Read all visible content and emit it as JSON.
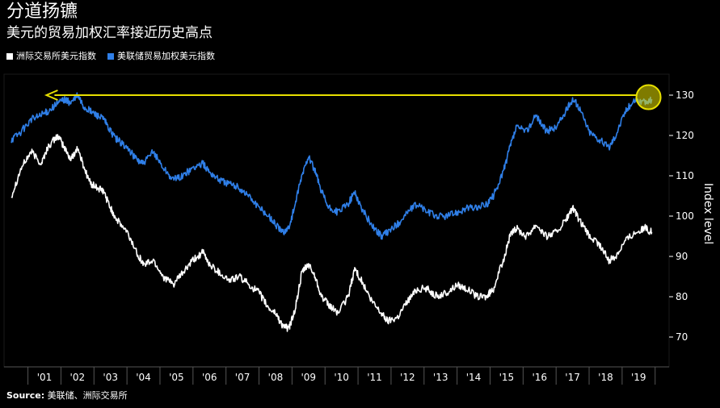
{
  "header": {
    "title": "分道扬镳",
    "subtitle": "美元的贸易加权汇率接近历史高点"
  },
  "legend": [
    {
      "label": "洲际交易所美元指数",
      "color": "#ffffff"
    },
    {
      "label": "美联储贸易加权美元指数",
      "color": "#2f7fe8"
    }
  ],
  "footer": {
    "source_label": "Source:",
    "source_text": "美联储、洲际交易所"
  },
  "colors": {
    "background": "#000000",
    "dxy": "#ffffff",
    "fed": "#2f7fe8",
    "arrow": "#e8e000",
    "grid": "#333333"
  },
  "chart_data": {
    "type": "line",
    "ylabel": "Index level",
    "ylim": [
      65,
      135
    ],
    "yticks": [
      70,
      80,
      90,
      100,
      110,
      120,
      130
    ],
    "xlim": [
      2000.0,
      2019.6
    ],
    "xtick_labels": [
      "'01",
      "'02",
      "'03",
      "'04",
      "'05",
      "'06",
      "'07",
      "'08",
      "'09",
      "'10",
      "'11",
      "'12",
      "'13",
      "'14",
      "'15",
      "'16",
      "'17",
      "'18",
      "'19"
    ],
    "xtick_positions": [
      2001,
      2002,
      2003,
      2004,
      2005,
      2006,
      2007,
      2008,
      2009,
      2010,
      2011,
      2012,
      2013,
      2014,
      2015,
      2016,
      2017,
      2018,
      2019
    ],
    "series": [
      {
        "name": "洲际交易所美元指数",
        "color": "#ffffff",
        "x": [
          2000.0,
          2000.3,
          2000.6,
          2000.9,
          2001.1,
          2001.4,
          2001.6,
          2001.8,
          2002.0,
          2002.2,
          2002.4,
          2002.6,
          2002.8,
          2003.0,
          2003.2,
          2003.5,
          2003.8,
          2004.0,
          2004.3,
          2004.6,
          2004.9,
          2005.2,
          2005.5,
          2005.8,
          2006.0,
          2006.3,
          2006.6,
          2006.9,
          2007.2,
          2007.5,
          2007.8,
          2008.0,
          2008.2,
          2008.4,
          2008.6,
          2008.8,
          2009.0,
          2009.2,
          2009.4,
          2009.6,
          2009.9,
          2010.2,
          2010.4,
          2010.6,
          2010.9,
          2011.2,
          2011.4,
          2011.7,
          2012.0,
          2012.3,
          2012.6,
          2012.9,
          2013.2,
          2013.5,
          2013.8,
          2014.1,
          2014.4,
          2014.6,
          2014.9,
          2015.1,
          2015.3,
          2015.6,
          2015.9,
          2016.2,
          2016.5,
          2016.8,
          2017.0,
          2017.2,
          2017.5,
          2017.8,
          2018.1,
          2018.3,
          2018.6,
          2018.9,
          2019.2,
          2019.4
        ],
        "values": [
          105,
          112,
          116,
          113,
          117,
          120,
          117,
          114,
          117,
          112,
          108,
          107,
          106,
          102,
          99,
          96,
          91,
          88,
          89,
          85,
          83,
          86,
          89,
          91,
          88,
          86,
          84,
          85,
          83,
          81,
          77,
          76,
          73,
          72,
          77,
          86,
          88,
          85,
          80,
          78,
          76,
          80,
          87,
          84,
          79,
          76,
          74,
          75,
          79,
          82,
          82,
          80,
          81,
          83,
          82,
          80,
          80,
          82,
          89,
          95,
          97,
          95,
          98,
          95,
          96,
          99,
          102,
          99,
          95,
          93,
          89,
          90,
          94,
          96,
          97,
          96
        ]
      },
      {
        "name": "美联储贸易加权美元指数",
        "color": "#2f7fe8",
        "x": [
          2000.0,
          2000.3,
          2000.6,
          2000.9,
          2001.1,
          2001.4,
          2001.6,
          2001.8,
          2002.0,
          2002.2,
          2002.4,
          2002.6,
          2002.8,
          2003.0,
          2003.2,
          2003.5,
          2003.8,
          2004.0,
          2004.3,
          2004.6,
          2004.9,
          2005.2,
          2005.5,
          2005.8,
          2006.0,
          2006.3,
          2006.6,
          2006.9,
          2007.2,
          2007.5,
          2007.8,
          2008.0,
          2008.2,
          2008.4,
          2008.6,
          2008.8,
          2009.0,
          2009.2,
          2009.4,
          2009.6,
          2009.9,
          2010.2,
          2010.4,
          2010.6,
          2010.9,
          2011.2,
          2011.4,
          2011.7,
          2012.0,
          2012.3,
          2012.6,
          2012.9,
          2013.2,
          2013.5,
          2013.8,
          2014.1,
          2014.4,
          2014.6,
          2014.9,
          2015.1,
          2015.3,
          2015.6,
          2015.9,
          2016.2,
          2016.5,
          2016.8,
          2017.0,
          2017.2,
          2017.5,
          2017.8,
          2018.1,
          2018.3,
          2018.6,
          2018.9,
          2019.2,
          2019.4
        ],
        "values": [
          119,
          121,
          124,
          125,
          126,
          128,
          129,
          128,
          130,
          127,
          126,
          125,
          124,
          121,
          119,
          117,
          114,
          113,
          116,
          112,
          109,
          110,
          112,
          113,
          111,
          109,
          108,
          107,
          105,
          102,
          100,
          98,
          96,
          97,
          103,
          110,
          115,
          111,
          106,
          102,
          101,
          103,
          106,
          102,
          98,
          95,
          96,
          98,
          101,
          103,
          101,
          100,
          100,
          101,
          102,
          102,
          103,
          105,
          111,
          117,
          122,
          121,
          125,
          121,
          122,
          126,
          129,
          127,
          121,
          119,
          117,
          120,
          126,
          129,
          128,
          129
        ]
      }
    ],
    "annotations": [
      {
        "type": "arrow",
        "from_x": 2019.3,
        "to_x": 2001.5,
        "y": 130
      },
      {
        "type": "circle",
        "x": 2019.3,
        "y": 129.5
      }
    ]
  }
}
